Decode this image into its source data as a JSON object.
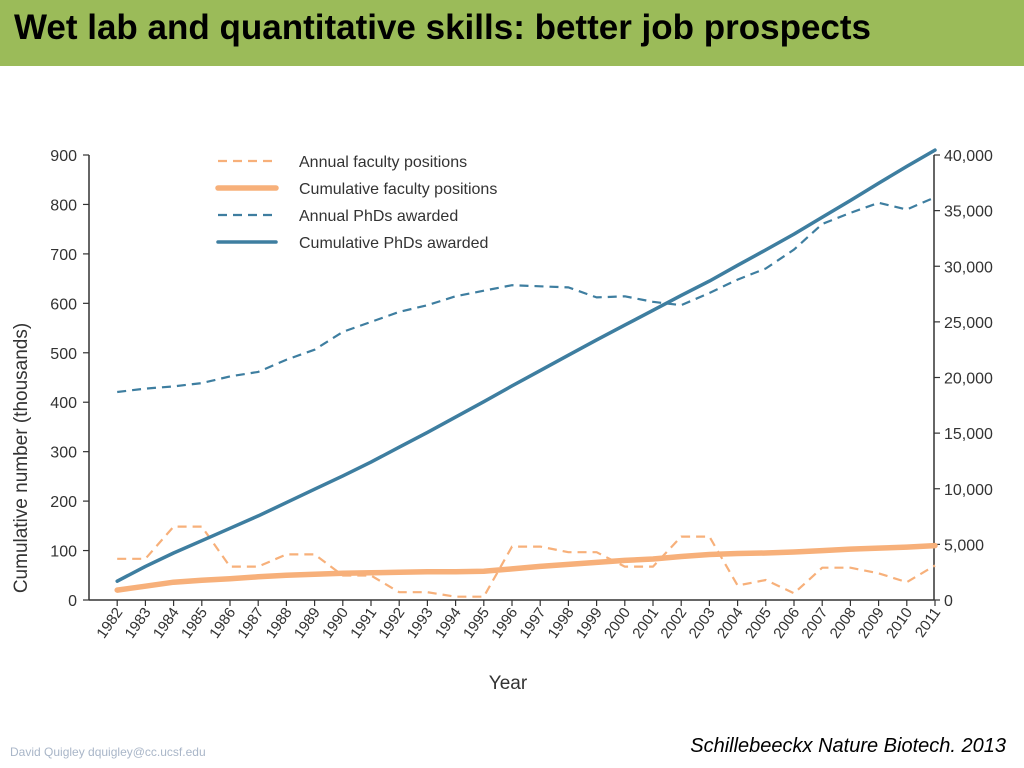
{
  "slide": {
    "title": "Wet lab and quantitative skills: better job prospects",
    "footer_left": "David Quigley dquigley@cc.ucsf.edu",
    "citation": "Schillebeeckx Nature Biotech. 2013"
  },
  "colors": {
    "title_bar": "#9bbb59",
    "faculty": "#f7b07a",
    "phd": "#3e7ea0",
    "axis": "#333333"
  },
  "chart_data": {
    "type": "line",
    "xlabel": "Year",
    "ylabel_left": "Cumulative number (thousands)",
    "ylim_left": [
      0,
      900
    ],
    "yticks_left": [
      "0",
      "100",
      "200",
      "300",
      "400",
      "500",
      "600",
      "700",
      "800",
      "900"
    ],
    "ylim_right": [
      0,
      40000
    ],
    "yticks_right": [
      "0",
      "5,000",
      "10,000",
      "15,000",
      "20,000",
      "25,000",
      "30,000",
      "35,000",
      "40,000"
    ],
    "x": [
      "1982",
      "1983",
      "1984",
      "1985",
      "1986",
      "1987",
      "1988",
      "1989",
      "1990",
      "1991",
      "1992",
      "1993",
      "1994",
      "1995",
      "1996",
      "1997",
      "1998",
      "1999",
      "2000",
      "2001",
      "2002",
      "2003",
      "2004",
      "2005",
      "2006",
      "2007",
      "2008",
      "2009",
      "2010",
      "2011"
    ],
    "legend_position": "top-left",
    "series": [
      {
        "name": "Annual faculty positions",
        "axis": "right",
        "style": "dashed",
        "values": [
          3700,
          3700,
          6600,
          6600,
          3000,
          3000,
          4100,
          4100,
          2200,
          2200,
          700,
          700,
          300,
          300,
          4800,
          4800,
          4300,
          4300,
          3000,
          3000,
          5700,
          5700,
          1300,
          1800,
          600,
          2900,
          2900,
          2400,
          1600,
          3100
        ]
      },
      {
        "name": "Cumulative faculty positions",
        "axis": "left",
        "style": "solid",
        "values": [
          20,
          28,
          36,
          40,
          43,
          47,
          50,
          52,
          54,
          55,
          56,
          57,
          57,
          58,
          63,
          68,
          72,
          76,
          80,
          83,
          88,
          92,
          94,
          95,
          97,
          100,
          103,
          105,
          107,
          110
        ]
      },
      {
        "name": "Annual PhDs awarded",
        "axis": "right",
        "style": "dashed",
        "values": [
          18700,
          19000,
          19200,
          19500,
          20100,
          20500,
          21600,
          22500,
          24100,
          25000,
          25900,
          26500,
          27300,
          27800,
          28300,
          28200,
          28100,
          27200,
          27300,
          26800,
          26500,
          27600,
          28800,
          29800,
          31500,
          33800,
          34800,
          35700,
          35100,
          36200
        ]
      },
      {
        "name": "Cumulative PhDs awarded",
        "axis": "left",
        "style": "solid",
        "values": [
          38,
          68,
          95,
          120,
          145,
          170,
          197,
          224,
          251,
          279,
          309,
          339,
          370,
          401,
          433,
          464,
          495,
          526,
          556,
          586,
          616,
          645,
          677,
          708,
          740,
          774,
          808,
          843,
          877,
          910
        ]
      }
    ]
  }
}
